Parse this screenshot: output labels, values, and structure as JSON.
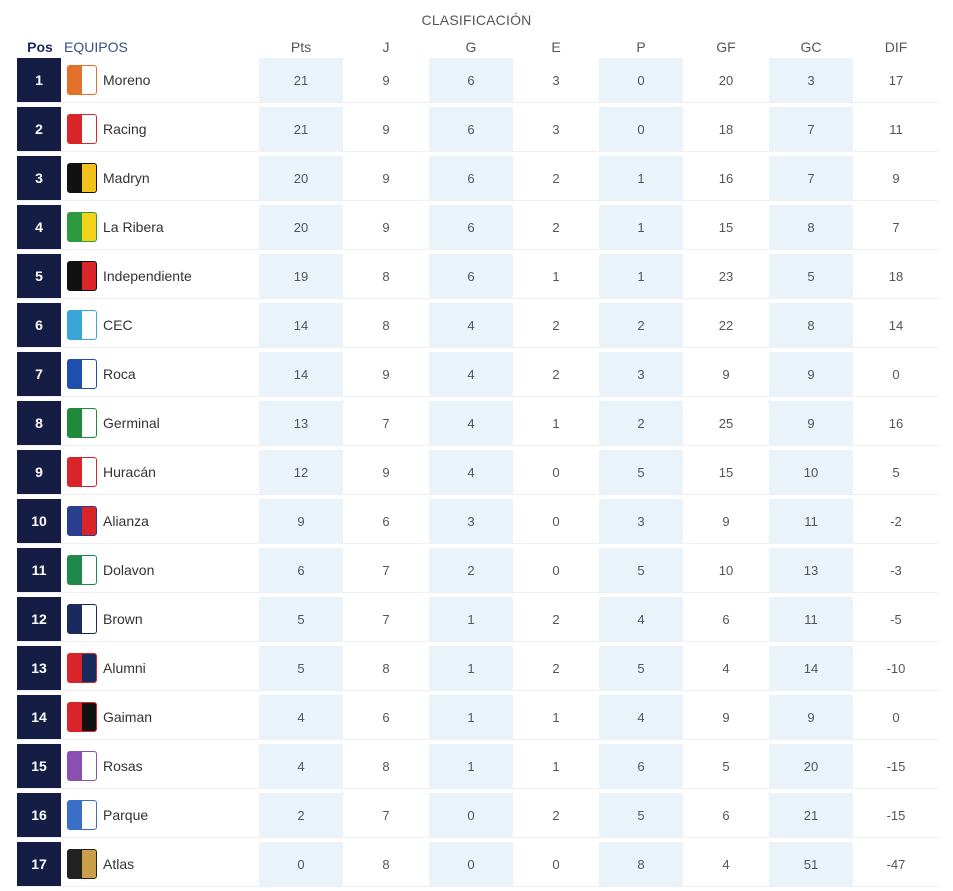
{
  "title": "CLASIFICACIÓN",
  "headers": {
    "pos": "Pos",
    "team": "EQUIPOS",
    "pts": "Pts",
    "j": "J",
    "g": "G",
    "e": "E",
    "p": "P",
    "gf": "GF",
    "gc": "GC",
    "dif": "DIF"
  },
  "rows": [
    {
      "pos": "1",
      "team": "Moreno",
      "crest_icon": "moreno-crest-icon",
      "crest_colors": [
        "#e5702a",
        "#ffffff"
      ],
      "pts": "21",
      "j": "9",
      "g": "6",
      "e": "3",
      "p": "0",
      "gf": "20",
      "gc": "3",
      "dif": "17"
    },
    {
      "pos": "2",
      "team": "Racing",
      "crest_icon": "racing-crest-icon",
      "crest_colors": [
        "#d9252a",
        "#ffffff"
      ],
      "pts": "21",
      "j": "9",
      "g": "6",
      "e": "3",
      "p": "0",
      "gf": "18",
      "gc": "7",
      "dif": "11"
    },
    {
      "pos": "3",
      "team": "Madryn",
      "crest_icon": "madryn-crest-icon",
      "crest_colors": [
        "#111111",
        "#f2c21a"
      ],
      "pts": "20",
      "j": "9",
      "g": "6",
      "e": "2",
      "p": "1",
      "gf": "16",
      "gc": "7",
      "dif": "9"
    },
    {
      "pos": "4",
      "team": "La Ribera",
      "crest_icon": "la-ribera-crest-icon",
      "crest_colors": [
        "#2e9a3f",
        "#f2d31a"
      ],
      "pts": "20",
      "j": "9",
      "g": "6",
      "e": "2",
      "p": "1",
      "gf": "15",
      "gc": "8",
      "dif": "7"
    },
    {
      "pos": "5",
      "team": "Independiente",
      "crest_icon": "independiente-crest-icon",
      "crest_colors": [
        "#111111",
        "#d9252a"
      ],
      "pts": "19",
      "j": "8",
      "g": "6",
      "e": "1",
      "p": "1",
      "gf": "23",
      "gc": "5",
      "dif": "18"
    },
    {
      "pos": "6",
      "team": "CEC",
      "crest_icon": "cec-crest-icon",
      "crest_colors": [
        "#3aa6d8",
        "#ffffff"
      ],
      "pts": "14",
      "j": "8",
      "g": "4",
      "e": "2",
      "p": "2",
      "gf": "22",
      "gc": "8",
      "dif": "14"
    },
    {
      "pos": "7",
      "team": "Roca",
      "crest_icon": "roca-crest-icon",
      "crest_colors": [
        "#1f4fae",
        "#ffffff"
      ],
      "pts": "14",
      "j": "9",
      "g": "4",
      "e": "2",
      "p": "3",
      "gf": "9",
      "gc": "9",
      "dif": "0"
    },
    {
      "pos": "8",
      "team": "Germinal",
      "crest_icon": "germinal-crest-icon",
      "crest_colors": [
        "#1e8a3a",
        "#ffffff"
      ],
      "pts": "13",
      "j": "7",
      "g": "4",
      "e": "1",
      "p": "2",
      "gf": "25",
      "gc": "9",
      "dif": "16"
    },
    {
      "pos": "9",
      "team": "Huracán",
      "crest_icon": "huracan-crest-icon",
      "crest_colors": [
        "#d9252a",
        "#ffffff"
      ],
      "pts": "12",
      "j": "9",
      "g": "4",
      "e": "0",
      "p": "5",
      "gf": "15",
      "gc": "10",
      "dif": "5"
    },
    {
      "pos": "10",
      "team": "Alianza",
      "crest_icon": "alianza-crest-icon",
      "crest_colors": [
        "#2a3e8f",
        "#d9252a"
      ],
      "pts": "9",
      "j": "6",
      "g": "3",
      "e": "0",
      "p": "3",
      "gf": "9",
      "gc": "11",
      "dif": "-2"
    },
    {
      "pos": "11",
      "team": "Dolavon",
      "crest_icon": "dolavon-crest-icon",
      "crest_colors": [
        "#1e8a4a",
        "#ffffff"
      ],
      "pts": "6",
      "j": "7",
      "g": "2",
      "e": "0",
      "p": "5",
      "gf": "10",
      "gc": "13",
      "dif": "-3"
    },
    {
      "pos": "12",
      "team": "Brown",
      "crest_icon": "brown-crest-icon",
      "crest_colors": [
        "#1a2a5c",
        "#ffffff"
      ],
      "pts": "5",
      "j": "7",
      "g": "1",
      "e": "2",
      "p": "4",
      "gf": "6",
      "gc": "11",
      "dif": "-5"
    },
    {
      "pos": "13",
      "team": "Alumni",
      "crest_icon": "alumni-crest-icon",
      "crest_colors": [
        "#d9252a",
        "#1a2a5c"
      ],
      "pts": "5",
      "j": "8",
      "g": "1",
      "e": "2",
      "p": "5",
      "gf": "4",
      "gc": "14",
      "dif": "-10"
    },
    {
      "pos": "14",
      "team": "Gaiman",
      "crest_icon": "gaiman-crest-icon",
      "crest_colors": [
        "#d9252a",
        "#111111"
      ],
      "pts": "4",
      "j": "6",
      "g": "1",
      "e": "1",
      "p": "4",
      "gf": "9",
      "gc": "9",
      "dif": "0"
    },
    {
      "pos": "15",
      "team": "Rosas",
      "crest_icon": "rosas-crest-icon",
      "crest_colors": [
        "#8a4fb0",
        "#ffffff"
      ],
      "pts": "4",
      "j": "8",
      "g": "1",
      "e": "1",
      "p": "6",
      "gf": "5",
      "gc": "20",
      "dif": "-15"
    },
    {
      "pos": "16",
      "team": "Parque",
      "crest_icon": "parque-crest-icon",
      "crest_colors": [
        "#3a6fc8",
        "#ffffff"
      ],
      "pts": "2",
      "j": "7",
      "g": "0",
      "e": "2",
      "p": "5",
      "gf": "6",
      "gc": "21",
      "dif": "-15"
    },
    {
      "pos": "17",
      "team": "Atlas",
      "crest_icon": "atlas-crest-icon",
      "crest_colors": [
        "#222222",
        "#c8a04a"
      ],
      "pts": "0",
      "j": "8",
      "g": "0",
      "e": "0",
      "p": "8",
      "gf": "4",
      "gc": "51",
      "dif": "-47"
    }
  ]
}
